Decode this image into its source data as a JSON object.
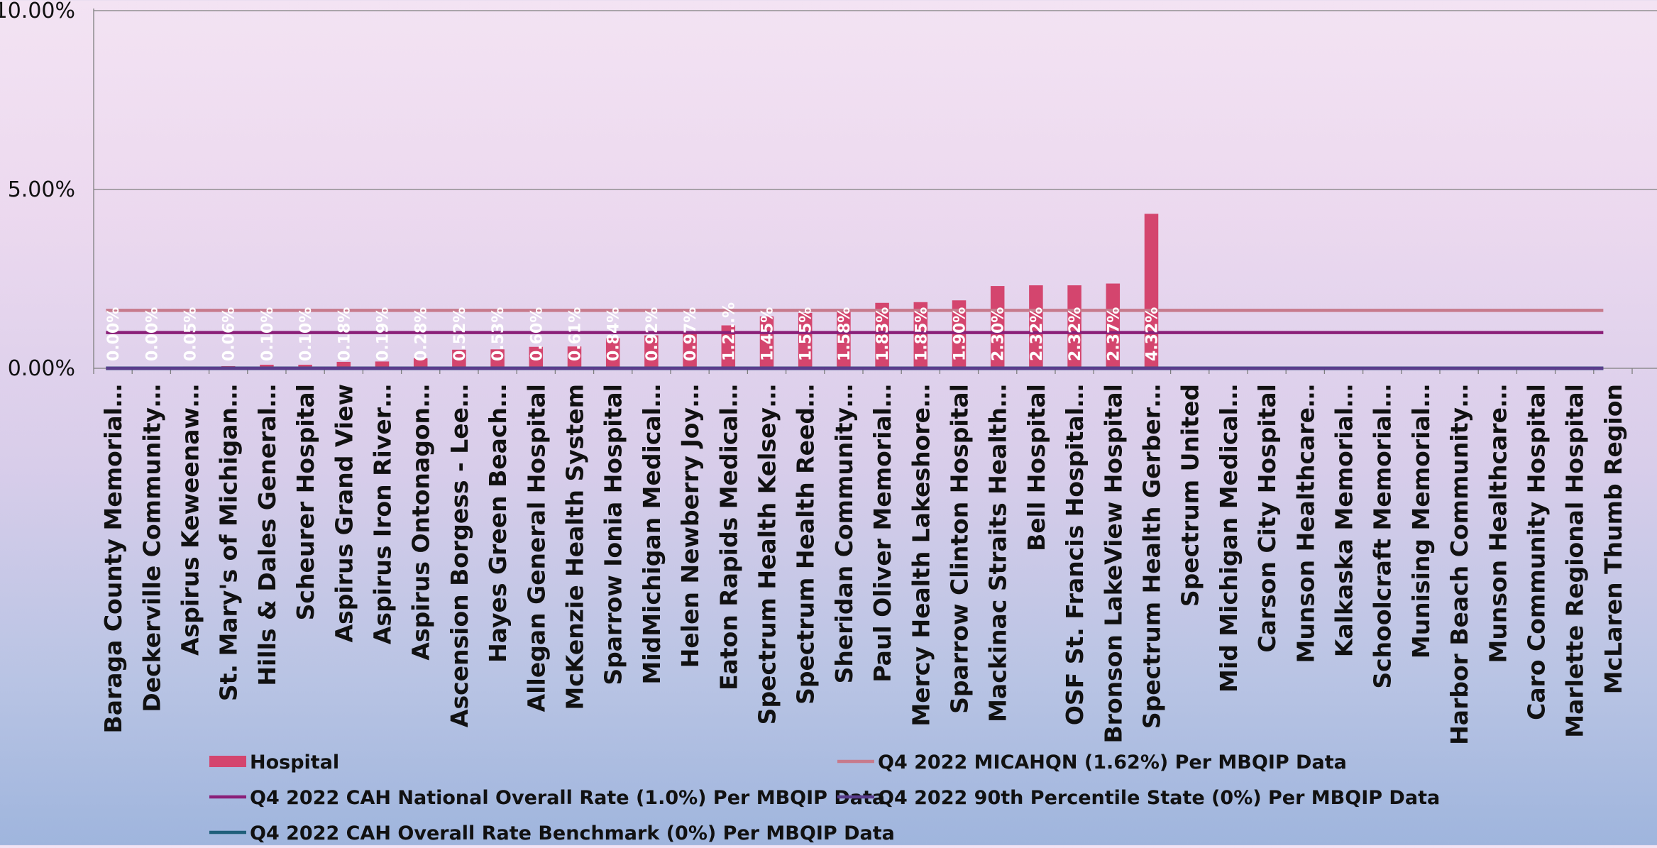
{
  "chart_data": {
    "type": "bar",
    "title": "",
    "xlabel": "",
    "ylabel": "",
    "ylim": [
      0,
      10
    ],
    "yticks": [
      "0.00%",
      "5.00%",
      "10.00%"
    ],
    "grid": "horizontal",
    "legend_position": "bottom",
    "categories": [
      "Baraga County Memorial…",
      "Deckerville Community…",
      "Aspirus Keweenaw…",
      "St. Mary's of Michigan…",
      "Hills & Dales General…",
      "Scheurer Hospital",
      "Aspirus Grand View",
      "Aspirus Iron River…",
      "Aspirus Ontonagon…",
      "Ascension Borgess - Lee…",
      "Hayes Green Beach…",
      "Allegan General Hospital",
      "McKenzie Health System",
      "Sparrow Ionia Hospital",
      "MidMichigan Medical…",
      "Helen Newberry Joy…",
      "Eaton Rapids Medical…",
      "Spectrum Health Kelsey…",
      "Spectrum Health Reed…",
      "Sheridan Community…",
      "Paul Oliver Memorial…",
      "Mercy Health Lakeshore…",
      "Sparrow Clinton Hospital",
      "Mackinac Straits Health…",
      "Bell Hospital",
      "OSF St. Francis Hospital…",
      "Bronson LakeView Hospital",
      "Spectrum Health Gerber…",
      "Spectrum United",
      "Mid Michigan Medical…",
      "Carson City Hospital",
      "Munson Healthcare…",
      "Kalkaska Memorial…",
      "Schoolcraft Memorial…",
      "Munising Memorial…",
      "Harbor Beach Community…",
      "Munson Healthcare…",
      "Caro Community Hospital",
      "Marlette Regional Hospital",
      "McLaren Thumb Region"
    ],
    "series": [
      {
        "name": "Hospital",
        "kind": "bar",
        "color": "#d4456e",
        "values": [
          0.0,
          0.0,
          0.05,
          0.06,
          0.1,
          0.1,
          0.18,
          0.19,
          0.28,
          0.52,
          0.53,
          0.6,
          0.61,
          0.84,
          0.92,
          0.97,
          1.2,
          1.45,
          1.55,
          1.58,
          1.83,
          1.85,
          1.9,
          2.3,
          2.32,
          2.32,
          2.37,
          4.32,
          null,
          null,
          null,
          null,
          null,
          null,
          null,
          null,
          null,
          null,
          null,
          null
        ],
        "labels": [
          "0.00%",
          "0.00%",
          "0.05%",
          "0.06%",
          "0.10%",
          "0.10%",
          "0.18%",
          "0.19%",
          "0.28%",
          "0.52%",
          "0.53%",
          "0.60%",
          "0.61%",
          "0.84%",
          "0.92%",
          "0.97%",
          "1.2…%",
          "1.45%",
          "1.55%",
          "1.58%",
          "1.83%",
          "1.85%",
          "1.90%",
          "2.30%",
          "2.32%",
          "2.32%",
          "2.37%",
          "4.32%",
          "",
          "",
          "",
          "",
          "",
          "",
          "",
          "",
          "",
          "",
          "",
          ""
        ]
      },
      {
        "name": "Q4 2022 MICAHQN (1.62%) Per MBQIP Data",
        "kind": "line",
        "color": "#c77a8c",
        "value": 1.62
      },
      {
        "name": "Q4 2022 CAH National Overall Rate (1.0%) Per MBQIP Data",
        "kind": "line",
        "color": "#8a1f78",
        "value": 1.0
      },
      {
        "name": "Q4 2022 90th Percentile State (0%) Per MBQIP Data",
        "kind": "line",
        "color": "#5a3d8c",
        "value": 0
      },
      {
        "name": "Q4 2022 CAH Overall Rate Benchmark (0%) Per MBQIP Data",
        "kind": "line",
        "color": "#1f5f7a",
        "value": 0
      }
    ]
  }
}
